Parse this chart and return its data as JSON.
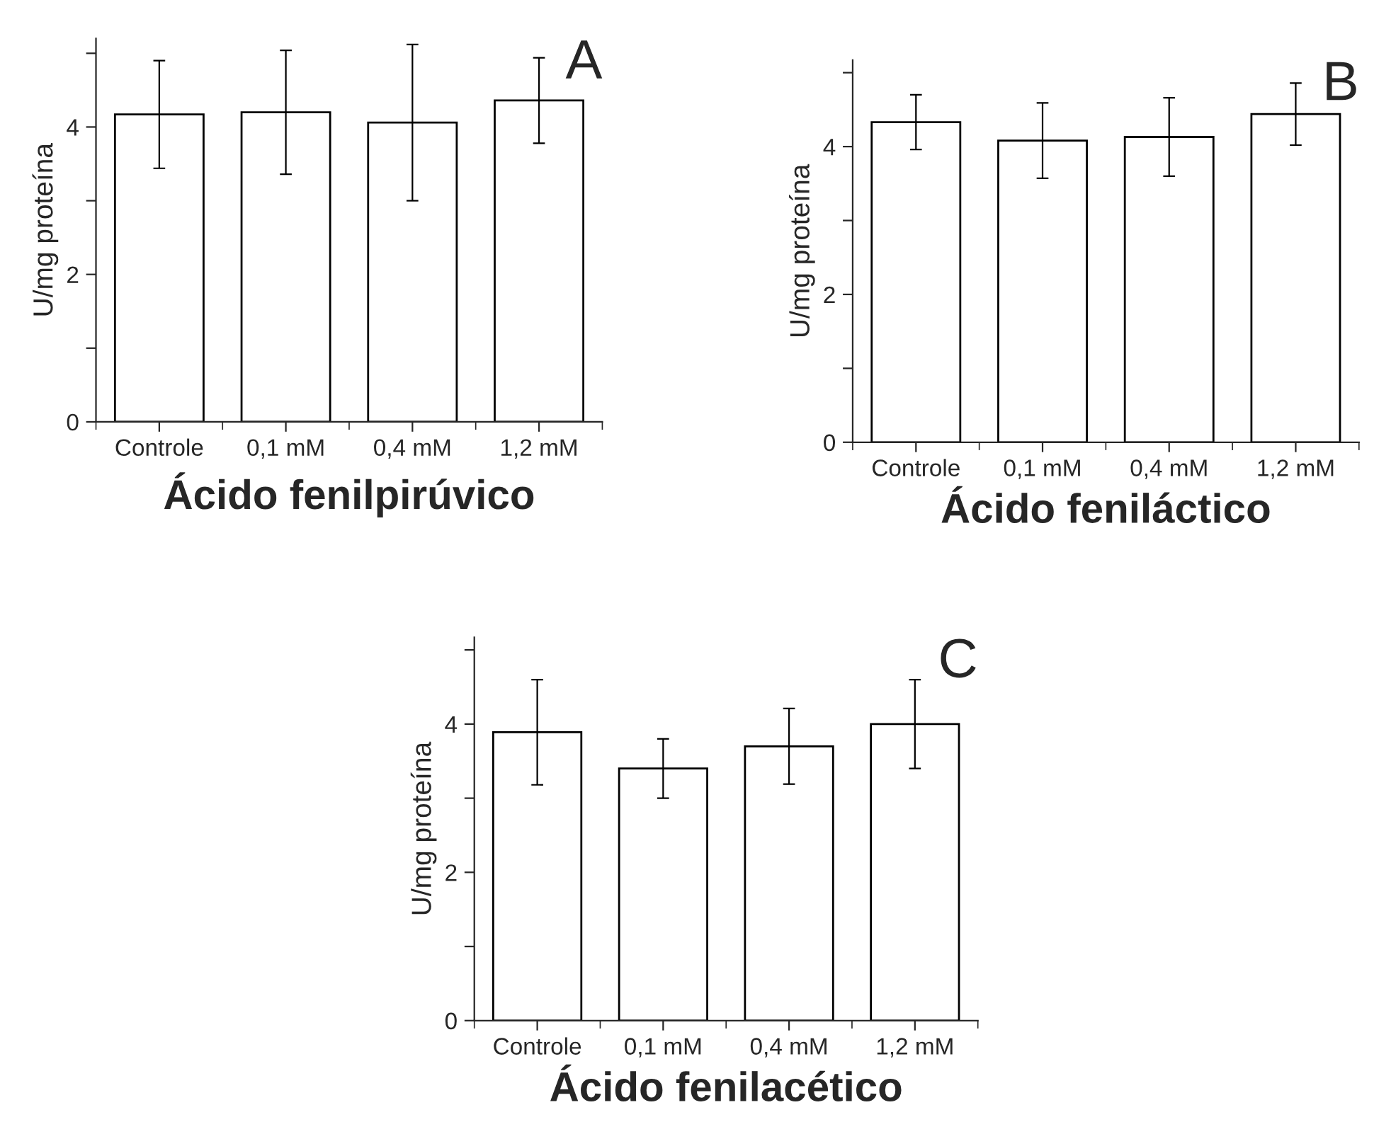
{
  "chart_data": [
    {
      "type": "bar",
      "xlabel": "Ácido fenilpirúvico",
      "ylabel": "U/mg proteína",
      "annotations": [
        "A"
      ],
      "categories": [
        "Controle",
        "0,1 mM",
        "0,4 mM",
        "1,2 mM"
      ],
      "values": [
        4.17,
        4.2,
        4.06,
        4.36
      ],
      "errors": [
        0.73,
        0.84,
        1.06,
        0.58
      ],
      "color": "#ffffff",
      "ylim": [
        0,
        5.2
      ],
      "yticks": [
        0,
        {
          "value": 1,
          "label": null
        },
        2,
        {
          "value": 3,
          "label": null
        },
        4,
        {
          "value": 5,
          "label": null
        }
      ]
    },
    {
      "type": "bar",
      "xlabel": "Ácido feniláctico",
      "ylabel": "U/mg proteína",
      "annotations": [
        "B"
      ],
      "categories": [
        "Controle",
        "0,1 mM",
        "0,4 mM",
        "1,2 mM"
      ],
      "values": [
        4.33,
        4.08,
        4.13,
        4.44
      ],
      "errors": [
        0.37,
        0.51,
        0.53,
        0.42
      ],
      "color": "#ffffff",
      "ylim": [
        0,
        5.17
      ],
      "yticks": [
        0,
        {
          "value": 1,
          "label": null
        },
        2,
        {
          "value": 3,
          "label": null
        },
        4,
        {
          "value": 5,
          "label": null
        }
      ]
    },
    {
      "type": "bar",
      "xlabel": "Ácido fenilacético",
      "ylabel": "U/mg proteína",
      "annotations": [
        "C"
      ],
      "categories": [
        "Controle",
        "0,1 mM",
        "0,4 mM",
        "1,2 mM"
      ],
      "values": [
        3.89,
        3.4,
        3.7,
        4.0
      ],
      "errors": [
        0.71,
        0.4,
        0.51,
        0.6
      ],
      "color": "#ffffff",
      "ylim": [
        0,
        5.17
      ],
      "yticks": [
        0,
        {
          "value": 1,
          "label": null
        },
        2,
        {
          "value": 3,
          "label": null
        },
        4,
        {
          "value": 5,
          "label": null
        }
      ]
    }
  ]
}
